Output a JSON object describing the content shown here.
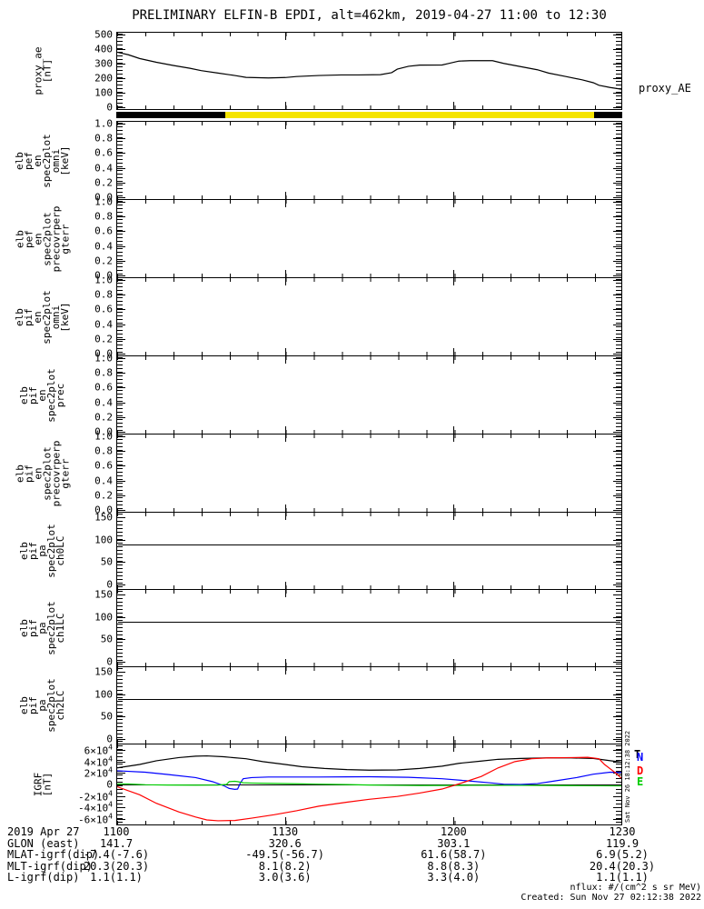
{
  "title": "PRELIMINARY ELFIN-B EPDI, alt=462km, 2019-04-27 11:00 to 12:30",
  "right_label": "proxy_AE",
  "side_timestamp": "Sat Nov 26 18:12:38 2022",
  "footer": {
    "units_note": "nflux: #/(cm^2 s sr MeV)",
    "created": "Created: Sun Nov 27 02:12:38 2022"
  },
  "colors": {
    "black": "#000000",
    "blue": "#0000ff",
    "red": "#ff0000",
    "green": "#00cc00",
    "yellow": "#f5e400"
  },
  "science_zone_bar": {
    "segments": [
      {
        "color": "#000000",
        "start": 0.0,
        "end": 0.215
      },
      {
        "color": "#f5e400",
        "start": 0.215,
        "end": 0.944
      },
      {
        "color": "#000000",
        "start": 0.944,
        "end": 1.0
      }
    ]
  },
  "igrf_legend": [
    {
      "label": "T",
      "color": "#000000"
    },
    {
      "label": "N",
      "color": "#0000ff"
    },
    {
      "label": "D",
      "color": "#ff0000"
    },
    {
      "label": "E",
      "color": "#00cc00"
    }
  ],
  "time_axis": {
    "tick_minutes": [
      0,
      30,
      60,
      90
    ],
    "rows": [
      {
        "label": "2019 Apr 27",
        "values": [
          "1100",
          "1130",
          "1200",
          "1230"
        ]
      },
      {
        "label": "GLON (east)",
        "values": [
          "141.7",
          "320.6",
          "303.1",
          "119.9"
        ]
      },
      {
        "label": "MLAT-igrf(dip)",
        "values": [
          "-7.4(-7.6)",
          "-49.5(-56.7)",
          "61.6(58.7)",
          "6.9(5.2)"
        ]
      },
      {
        "label": "MLT-igrf(dip)",
        "values": [
          "20.3(20.3)",
          "8.1(8.2)",
          "8.8(8.3)",
          "20.4(20.3)"
        ]
      },
      {
        "label": "L-igrf(dip)",
        "values": [
          "1.1(1.1)",
          "3.0(3.6)",
          "3.3(4.0)",
          "1.1(1.1)"
        ]
      }
    ]
  },
  "chart_data": [
    {
      "name": "proxy_ae",
      "type": "line",
      "label_lines": [
        "proxy_ae",
        "[nT]"
      ],
      "ylabel": "proxy_ae [nT]",
      "yrange": [
        -15,
        515
      ],
      "yticks": [
        {
          "v": 500,
          "l": "500"
        },
        {
          "v": 400,
          "l": "400"
        },
        {
          "v": 300,
          "l": "300"
        },
        {
          "v": 200,
          "l": "200"
        },
        {
          "v": 100,
          "l": "100"
        },
        {
          "v": 0,
          "l": "0"
        }
      ],
      "x_unit": "minutes after 11:00 UT",
      "xrange": [
        0,
        90
      ],
      "series": [
        {
          "name": "proxy_AE",
          "color": "#000000",
          "points": [
            [
              0,
              380
            ],
            [
              2,
              362
            ],
            [
              4,
              336
            ],
            [
              7,
              310
            ],
            [
              10,
              288
            ],
            [
              13,
              268
            ],
            [
              15,
              252
            ],
            [
              18,
              235
            ],
            [
              21,
              218
            ],
            [
              23,
              205
            ],
            [
              27,
              201
            ],
            [
              30,
              204
            ],
            [
              32,
              211
            ],
            [
              36,
              218
            ],
            [
              40,
              222
            ],
            [
              43,
              222
            ],
            [
              47,
              224
            ],
            [
              49,
              238
            ],
            [
              50,
              262
            ],
            [
              52,
              282
            ],
            [
              54,
              290
            ],
            [
              58,
              291
            ],
            [
              59,
              300
            ],
            [
              61,
              318
            ],
            [
              63,
              321
            ],
            [
              67,
              321
            ],
            [
              69,
              302
            ],
            [
              72,
              280
            ],
            [
              75,
              258
            ],
            [
              77,
              235
            ],
            [
              80,
              212
            ],
            [
              83,
              188
            ],
            [
              85,
              168
            ],
            [
              86,
              150
            ],
            [
              88,
              135
            ],
            [
              90,
              123
            ]
          ]
        }
      ]
    },
    {
      "name": "elb_pef_en_spec2plot_omni",
      "type": "empty",
      "label_lines": [
        "elb",
        "pef",
        "en",
        "spec2plot",
        "omni",
        "[keV]"
      ],
      "yrange": [
        -0.025,
        1.025
      ],
      "yticks": [
        {
          "v": 1.0,
          "l": "1.0"
        },
        {
          "v": 0.8,
          "l": "0.8"
        },
        {
          "v": 0.6,
          "l": "0.6"
        },
        {
          "v": 0.4,
          "l": "0.4"
        },
        {
          "v": 0.2,
          "l": "0.2"
        },
        {
          "v": 0.0,
          "l": "0.0"
        }
      ],
      "xrange": [
        0,
        90
      ],
      "series": []
    },
    {
      "name": "elb_pef_en_spec2plot_precovrperp_gterr",
      "type": "empty",
      "label_lines": [
        "elb",
        "pef",
        "en",
        "spec2plot",
        "precovrperp",
        "gterr"
      ],
      "yrange": [
        -0.025,
        1.025
      ],
      "yticks": [
        {
          "v": 1.0,
          "l": "1.0"
        },
        {
          "v": 0.8,
          "l": "0.8"
        },
        {
          "v": 0.6,
          "l": "0.6"
        },
        {
          "v": 0.4,
          "l": "0.4"
        },
        {
          "v": 0.2,
          "l": "0.2"
        },
        {
          "v": 0.0,
          "l": "0.0"
        }
      ],
      "xrange": [
        0,
        90
      ],
      "series": []
    },
    {
      "name": "elb_pif_en_spec2plot_omni",
      "type": "empty",
      "label_lines": [
        "elb",
        "pif",
        "en",
        "spec2plot",
        "omni",
        "[keV]"
      ],
      "yrange": [
        -0.025,
        1.025
      ],
      "yticks": [
        {
          "v": 1.0,
          "l": "1.0"
        },
        {
          "v": 0.8,
          "l": "0.8"
        },
        {
          "v": 0.6,
          "l": "0.6"
        },
        {
          "v": 0.4,
          "l": "0.4"
        },
        {
          "v": 0.2,
          "l": "0.2"
        },
        {
          "v": 0.0,
          "l": "0.0"
        }
      ],
      "xrange": [
        0,
        90
      ],
      "series": []
    },
    {
      "name": "elb_pif_en_spec2plot_prec",
      "type": "empty",
      "label_lines": [
        "elb",
        "pif",
        "en",
        "spec2plot",
        "prec"
      ],
      "yrange": [
        -0.025,
        1.025
      ],
      "yticks": [
        {
          "v": 1.0,
          "l": "1.0"
        },
        {
          "v": 0.8,
          "l": "0.8"
        },
        {
          "v": 0.6,
          "l": "0.6"
        },
        {
          "v": 0.4,
          "l": "0.4"
        },
        {
          "v": 0.2,
          "l": "0.2"
        },
        {
          "v": 0.0,
          "l": "0.0"
        }
      ],
      "xrange": [
        0,
        90
      ],
      "series": []
    },
    {
      "name": "elb_pif_en_spec2plot_precovrperp_gterr",
      "type": "empty",
      "label_lines": [
        "elb",
        "pif",
        "en",
        "spec2plot",
        "precovrperp",
        "gterr"
      ],
      "yrange": [
        -0.025,
        1.025
      ],
      "yticks": [
        {
          "v": 1.0,
          "l": "1.0"
        },
        {
          "v": 0.8,
          "l": "0.8"
        },
        {
          "v": 0.6,
          "l": "0.6"
        },
        {
          "v": 0.4,
          "l": "0.4"
        },
        {
          "v": 0.2,
          "l": "0.2"
        },
        {
          "v": 0.0,
          "l": "0.0"
        }
      ],
      "xrange": [
        0,
        90
      ],
      "series": []
    },
    {
      "name": "elb_pif_pa_spec2plot_ch0LC",
      "type": "hline",
      "label_lines": [
        "elb",
        "pif",
        "pa",
        "spec2plot",
        "ch0LC"
      ],
      "yrange": [
        -10,
        160
      ],
      "hline": 90,
      "yticks": [
        {
          "v": 150,
          "l": "150"
        },
        {
          "v": 100,
          "l": "100"
        },
        {
          "v": 50,
          "l": "50"
        },
        {
          "v": 0,
          "l": "0"
        }
      ],
      "xrange": [
        0,
        90
      ],
      "series": []
    },
    {
      "name": "elb_pif_pa_spec2plot_ch1LC",
      "type": "hline",
      "label_lines": [
        "elb",
        "pif",
        "pa",
        "spec2plot",
        "ch1LC"
      ],
      "yrange": [
        -10,
        160
      ],
      "hline": 90,
      "yticks": [
        {
          "v": 150,
          "l": "150"
        },
        {
          "v": 100,
          "l": "100"
        },
        {
          "v": 50,
          "l": "50"
        },
        {
          "v": 0,
          "l": "0"
        }
      ],
      "xrange": [
        0,
        90
      ],
      "series": []
    },
    {
      "name": "elb_pif_pa_spec2plot_ch2LC",
      "type": "hline",
      "label_lines": [
        "elb",
        "pif",
        "pa",
        "spec2plot",
        "ch2LC"
      ],
      "yrange": [
        -10,
        160
      ],
      "hline": 90,
      "yticks": [
        {
          "v": 150,
          "l": "150"
        },
        {
          "v": 100,
          "l": "100"
        },
        {
          "v": 50,
          "l": "50"
        },
        {
          "v": 0,
          "l": "0"
        }
      ],
      "xrange": [
        0,
        90
      ],
      "series": []
    },
    {
      "name": "IGRF",
      "type": "line",
      "label_lines": [
        "IGRF",
        "[nT]"
      ],
      "ylabel": "IGRF [nT]",
      "yrange": [
        -70000,
        70000
      ],
      "hline": 0,
      "yticks": [
        {
          "v": 60000,
          "l": "6×10^4"
        },
        {
          "v": 40000,
          "l": "4×10^4"
        },
        {
          "v": 20000,
          "l": "2×10^4"
        },
        {
          "v": 0,
          "l": "0"
        },
        {
          "v": -20000,
          "l": "-2×10^4"
        },
        {
          "v": -40000,
          "l": "-4×10^4"
        },
        {
          "v": -60000,
          "l": "-6×10^4"
        }
      ],
      "xrange": [
        0,
        90
      ],
      "series": [
        {
          "name": "T",
          "color": "#000000",
          "points": [
            [
              0,
              29000
            ],
            [
              4,
              35000
            ],
            [
              7,
              41500
            ],
            [
              11,
              47000
            ],
            [
              14,
              49500
            ],
            [
              16,
              50000
            ],
            [
              19,
              48500
            ],
            [
              23,
              45000
            ],
            [
              26,
              40000
            ],
            [
              30,
              35000
            ],
            [
              33,
              31000
            ],
            [
              37,
              28000
            ],
            [
              41,
              26000
            ],
            [
              45,
              25000
            ],
            [
              50,
              25500
            ],
            [
              54,
              28000
            ],
            [
              58,
              32000
            ],
            [
              61,
              37000
            ],
            [
              65,
              41000
            ],
            [
              68,
              44000
            ],
            [
              72,
              45500
            ],
            [
              77,
              46500
            ],
            [
              81,
              46500
            ],
            [
              85,
              45500
            ],
            [
              87,
              43000
            ],
            [
              90,
              39000
            ]
          ]
        },
        {
          "name": "N",
          "color": "#0000ff",
          "points": [
            [
              0,
              24000
            ],
            [
              5,
              21500
            ],
            [
              9,
              17500
            ],
            [
              14,
              12000
            ],
            [
              17,
              5000
            ],
            [
              19,
              -2000
            ],
            [
              20,
              -7000
            ],
            [
              21,
              -8500
            ],
            [
              21.5,
              -8000
            ],
            [
              22,
              3000
            ],
            [
              22.5,
              10000
            ],
            [
              24,
              12000
            ],
            [
              27,
              13000
            ],
            [
              36,
              13000
            ],
            [
              45,
              13500
            ],
            [
              52,
              12500
            ],
            [
              58,
              10000
            ],
            [
              63,
              6000
            ],
            [
              67,
              2500
            ],
            [
              69,
              500
            ],
            [
              72,
              0
            ],
            [
              75,
              1500
            ],
            [
              78,
              6000
            ],
            [
              82,
              12000
            ],
            [
              85,
              18000
            ],
            [
              88,
              21500
            ],
            [
              90,
              21000
            ]
          ]
        },
        {
          "name": "E",
          "color": "#00cc00",
          "points": [
            [
              0,
              800
            ],
            [
              2,
              800
            ],
            [
              5,
              -500
            ],
            [
              9,
              -1000
            ],
            [
              14,
              -1200
            ],
            [
              18,
              -1000
            ],
            [
              19.5,
              0
            ],
            [
              20,
              5000
            ],
            [
              21,
              5500
            ],
            [
              21.5,
              5000
            ],
            [
              22.5,
              3000
            ],
            [
              24,
              2500
            ],
            [
              27,
              2000
            ],
            [
              32,
              1200
            ],
            [
              36,
              500
            ],
            [
              41,
              -200
            ],
            [
              45,
              -1000
            ],
            [
              50,
              -1500
            ],
            [
              54,
              -1800
            ],
            [
              63,
              -1500
            ],
            [
              72,
              -1500
            ],
            [
              81,
              -2000
            ],
            [
              90,
              -2500
            ]
          ]
        },
        {
          "name": "D",
          "color": "#ff0000",
          "points": [
            [
              0,
              -4000
            ],
            [
              4,
              -18000
            ],
            [
              7,
              -33000
            ],
            [
              11,
              -48000
            ],
            [
              14,
              -57000
            ],
            [
              16,
              -62000
            ],
            [
              18,
              -63500
            ],
            [
              21,
              -63000
            ],
            [
              24,
              -59000
            ],
            [
              28,
              -53000
            ],
            [
              32,
              -46000
            ],
            [
              36,
              -38000
            ],
            [
              41,
              -31000
            ],
            [
              45,
              -26000
            ],
            [
              50,
              -21000
            ],
            [
              54,
              -15000
            ],
            [
              58,
              -8000
            ],
            [
              61,
              1000
            ],
            [
              65,
              14000
            ],
            [
              68,
              29000
            ],
            [
              71,
              40000
            ],
            [
              74,
              45000
            ],
            [
              77,
              46500
            ],
            [
              81,
              47000
            ],
            [
              84,
              47500
            ],
            [
              86,
              45000
            ],
            [
              87,
              35000
            ],
            [
              89,
              20000
            ],
            [
              90,
              11000
            ]
          ]
        }
      ]
    }
  ]
}
